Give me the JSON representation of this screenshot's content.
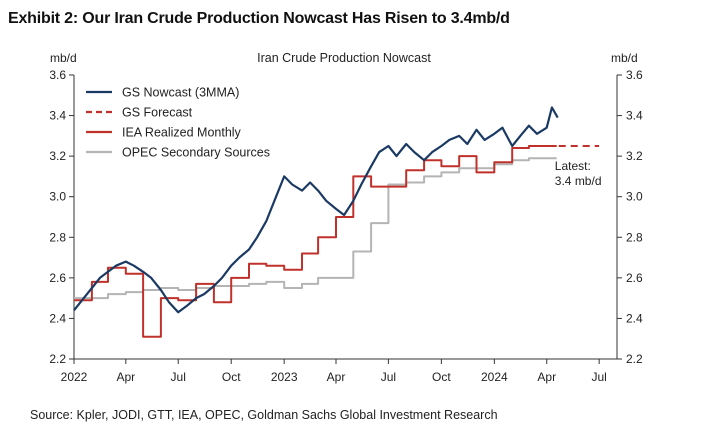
{
  "exhibit": {
    "title": "Exhibit 2: Our Iran Crude Production Nowcast Has Risen to 3.4mb/d",
    "source": "Source: Kpler, JODI, GTT, IEA, OPEC, Goldman Sachs Global Investment Research"
  },
  "chart_data": {
    "type": "line",
    "title": "Iran Crude Production Nowcast",
    "ylabel_left": "mb/d",
    "ylabel_right": "mb/d",
    "ylim": [
      2.2,
      3.6
    ],
    "yticks": [
      "2.2",
      "2.4",
      "2.6",
      "2.8",
      "3.0",
      "3.2",
      "3.4",
      "3.6"
    ],
    "xlim": [
      "2022-01-01",
      "2024-08-01"
    ],
    "xticks": [
      {
        "date": "2022-01-01",
        "label": "2022"
      },
      {
        "date": "2022-04-01",
        "label": "Apr"
      },
      {
        "date": "2022-07-01",
        "label": "Jul"
      },
      {
        "date": "2022-10-01",
        "label": "Oct"
      },
      {
        "date": "2023-01-01",
        "label": "2023"
      },
      {
        "date": "2023-04-01",
        "label": "Apr"
      },
      {
        "date": "2023-07-01",
        "label": "Jul"
      },
      {
        "date": "2023-10-01",
        "label": "Oct"
      },
      {
        "date": "2024-01-01",
        "label": "2024"
      },
      {
        "date": "2024-04-01",
        "label": "Apr"
      },
      {
        "date": "2024-07-01",
        "label": "Jul"
      }
    ],
    "grid": false,
    "legend_position": "top-left",
    "annotation": {
      "lines": [
        "Latest:",
        "3.4 mb/d"
      ],
      "date": "2024-04-15",
      "value": 3.22
    },
    "series": [
      {
        "name": "GS Nowcast (3MMA)",
        "color": "#1b3a63",
        "style": "solid",
        "points": [
          [
            "2022-01-01",
            2.44
          ],
          [
            "2022-01-15",
            2.49
          ],
          [
            "2022-02-01",
            2.55
          ],
          [
            "2022-02-15",
            2.6
          ],
          [
            "2022-03-01",
            2.63
          ],
          [
            "2022-03-15",
            2.66
          ],
          [
            "2022-04-01",
            2.68
          ],
          [
            "2022-04-15",
            2.66
          ],
          [
            "2022-05-01",
            2.63
          ],
          [
            "2022-05-15",
            2.6
          ],
          [
            "2022-06-01",
            2.54
          ],
          [
            "2022-06-15",
            2.48
          ],
          [
            "2022-07-01",
            2.43
          ],
          [
            "2022-07-15",
            2.46
          ],
          [
            "2022-08-01",
            2.5
          ],
          [
            "2022-08-15",
            2.52
          ],
          [
            "2022-09-01",
            2.56
          ],
          [
            "2022-09-15",
            2.6
          ],
          [
            "2022-10-01",
            2.66
          ],
          [
            "2022-10-15",
            2.7
          ],
          [
            "2022-11-01",
            2.74
          ],
          [
            "2022-11-15",
            2.8
          ],
          [
            "2022-12-01",
            2.88
          ],
          [
            "2022-12-15",
            2.98
          ],
          [
            "2023-01-01",
            3.1
          ],
          [
            "2023-01-15",
            3.06
          ],
          [
            "2023-02-01",
            3.03
          ],
          [
            "2023-02-15",
            3.07
          ],
          [
            "2023-03-01",
            3.03
          ],
          [
            "2023-03-15",
            2.98
          ],
          [
            "2023-04-01",
            2.94
          ],
          [
            "2023-04-15",
            2.91
          ],
          [
            "2023-05-01",
            2.98
          ],
          [
            "2023-05-15",
            3.06
          ],
          [
            "2023-06-01",
            3.15
          ],
          [
            "2023-06-15",
            3.22
          ],
          [
            "2023-07-01",
            3.25
          ],
          [
            "2023-07-15",
            3.2
          ],
          [
            "2023-08-01",
            3.26
          ],
          [
            "2023-08-15",
            3.22
          ],
          [
            "2023-09-01",
            3.18
          ],
          [
            "2023-09-15",
            3.22
          ],
          [
            "2023-10-01",
            3.25
          ],
          [
            "2023-10-15",
            3.28
          ],
          [
            "2023-11-01",
            3.3
          ],
          [
            "2023-11-15",
            3.26
          ],
          [
            "2023-12-01",
            3.33
          ],
          [
            "2023-12-15",
            3.28
          ],
          [
            "2024-01-01",
            3.31
          ],
          [
            "2024-01-15",
            3.34
          ],
          [
            "2024-02-01",
            3.25
          ],
          [
            "2024-02-15",
            3.3
          ],
          [
            "2024-03-01",
            3.35
          ],
          [
            "2024-03-15",
            3.31
          ],
          [
            "2024-04-01",
            3.34
          ],
          [
            "2024-04-10",
            3.44
          ],
          [
            "2024-04-20",
            3.39
          ]
        ]
      },
      {
        "name": "GS Forecast",
        "color": "#c0312b",
        "style": "dashed",
        "points": [
          [
            "2024-04-01",
            3.25
          ],
          [
            "2024-07-01",
            3.25
          ]
        ]
      },
      {
        "name": "IEA Realized Monthly",
        "color": "#c0312b",
        "style": "step",
        "points": [
          [
            "2022-01-01",
            2.49
          ],
          [
            "2022-02-01",
            2.58
          ],
          [
            "2022-03-01",
            2.65
          ],
          [
            "2022-04-01",
            2.62
          ],
          [
            "2022-05-01",
            2.31
          ],
          [
            "2022-06-01",
            2.5
          ],
          [
            "2022-07-01",
            2.49
          ],
          [
            "2022-08-01",
            2.57
          ],
          [
            "2022-09-01",
            2.48
          ],
          [
            "2022-10-01",
            2.6
          ],
          [
            "2022-11-01",
            2.67
          ],
          [
            "2022-12-01",
            2.66
          ],
          [
            "2023-01-01",
            2.64
          ],
          [
            "2023-02-01",
            2.72
          ],
          [
            "2023-03-01",
            2.8
          ],
          [
            "2023-04-01",
            2.9
          ],
          [
            "2023-05-01",
            3.1
          ],
          [
            "2023-06-01",
            3.05
          ],
          [
            "2023-07-01",
            3.05
          ],
          [
            "2023-08-01",
            3.13
          ],
          [
            "2023-09-01",
            3.18
          ],
          [
            "2023-10-01",
            3.15
          ],
          [
            "2023-11-01",
            3.2
          ],
          [
            "2023-12-01",
            3.12
          ],
          [
            "2024-01-01",
            3.17
          ],
          [
            "2024-02-01",
            3.24
          ],
          [
            "2024-03-01",
            3.25
          ],
          [
            "2024-04-01",
            3.25
          ]
        ]
      },
      {
        "name": "OPEC Secondary Sources",
        "color": "#b4b4b4",
        "style": "step",
        "points": [
          [
            "2022-01-01",
            2.5
          ],
          [
            "2022-02-01",
            2.5
          ],
          [
            "2022-03-01",
            2.52
          ],
          [
            "2022-04-01",
            2.53
          ],
          [
            "2022-05-01",
            2.54
          ],
          [
            "2022-06-01",
            2.55
          ],
          [
            "2022-07-01",
            2.54
          ],
          [
            "2022-08-01",
            2.55
          ],
          [
            "2022-09-01",
            2.56
          ],
          [
            "2022-10-01",
            2.56
          ],
          [
            "2022-11-01",
            2.57
          ],
          [
            "2022-12-01",
            2.58
          ],
          [
            "2023-01-01",
            2.55
          ],
          [
            "2023-02-01",
            2.57
          ],
          [
            "2023-03-01",
            2.6
          ],
          [
            "2023-04-01",
            2.6
          ],
          [
            "2023-05-01",
            2.73
          ],
          [
            "2023-06-01",
            2.87
          ],
          [
            "2023-07-01",
            3.06
          ],
          [
            "2023-08-01",
            3.07
          ],
          [
            "2023-09-01",
            3.1
          ],
          [
            "2023-10-01",
            3.12
          ],
          [
            "2023-11-01",
            3.14
          ],
          [
            "2023-12-01",
            3.14
          ],
          [
            "2024-01-01",
            3.16
          ],
          [
            "2024-02-01",
            3.18
          ],
          [
            "2024-03-01",
            3.19
          ],
          [
            "2024-04-01",
            3.19
          ]
        ]
      }
    ]
  }
}
